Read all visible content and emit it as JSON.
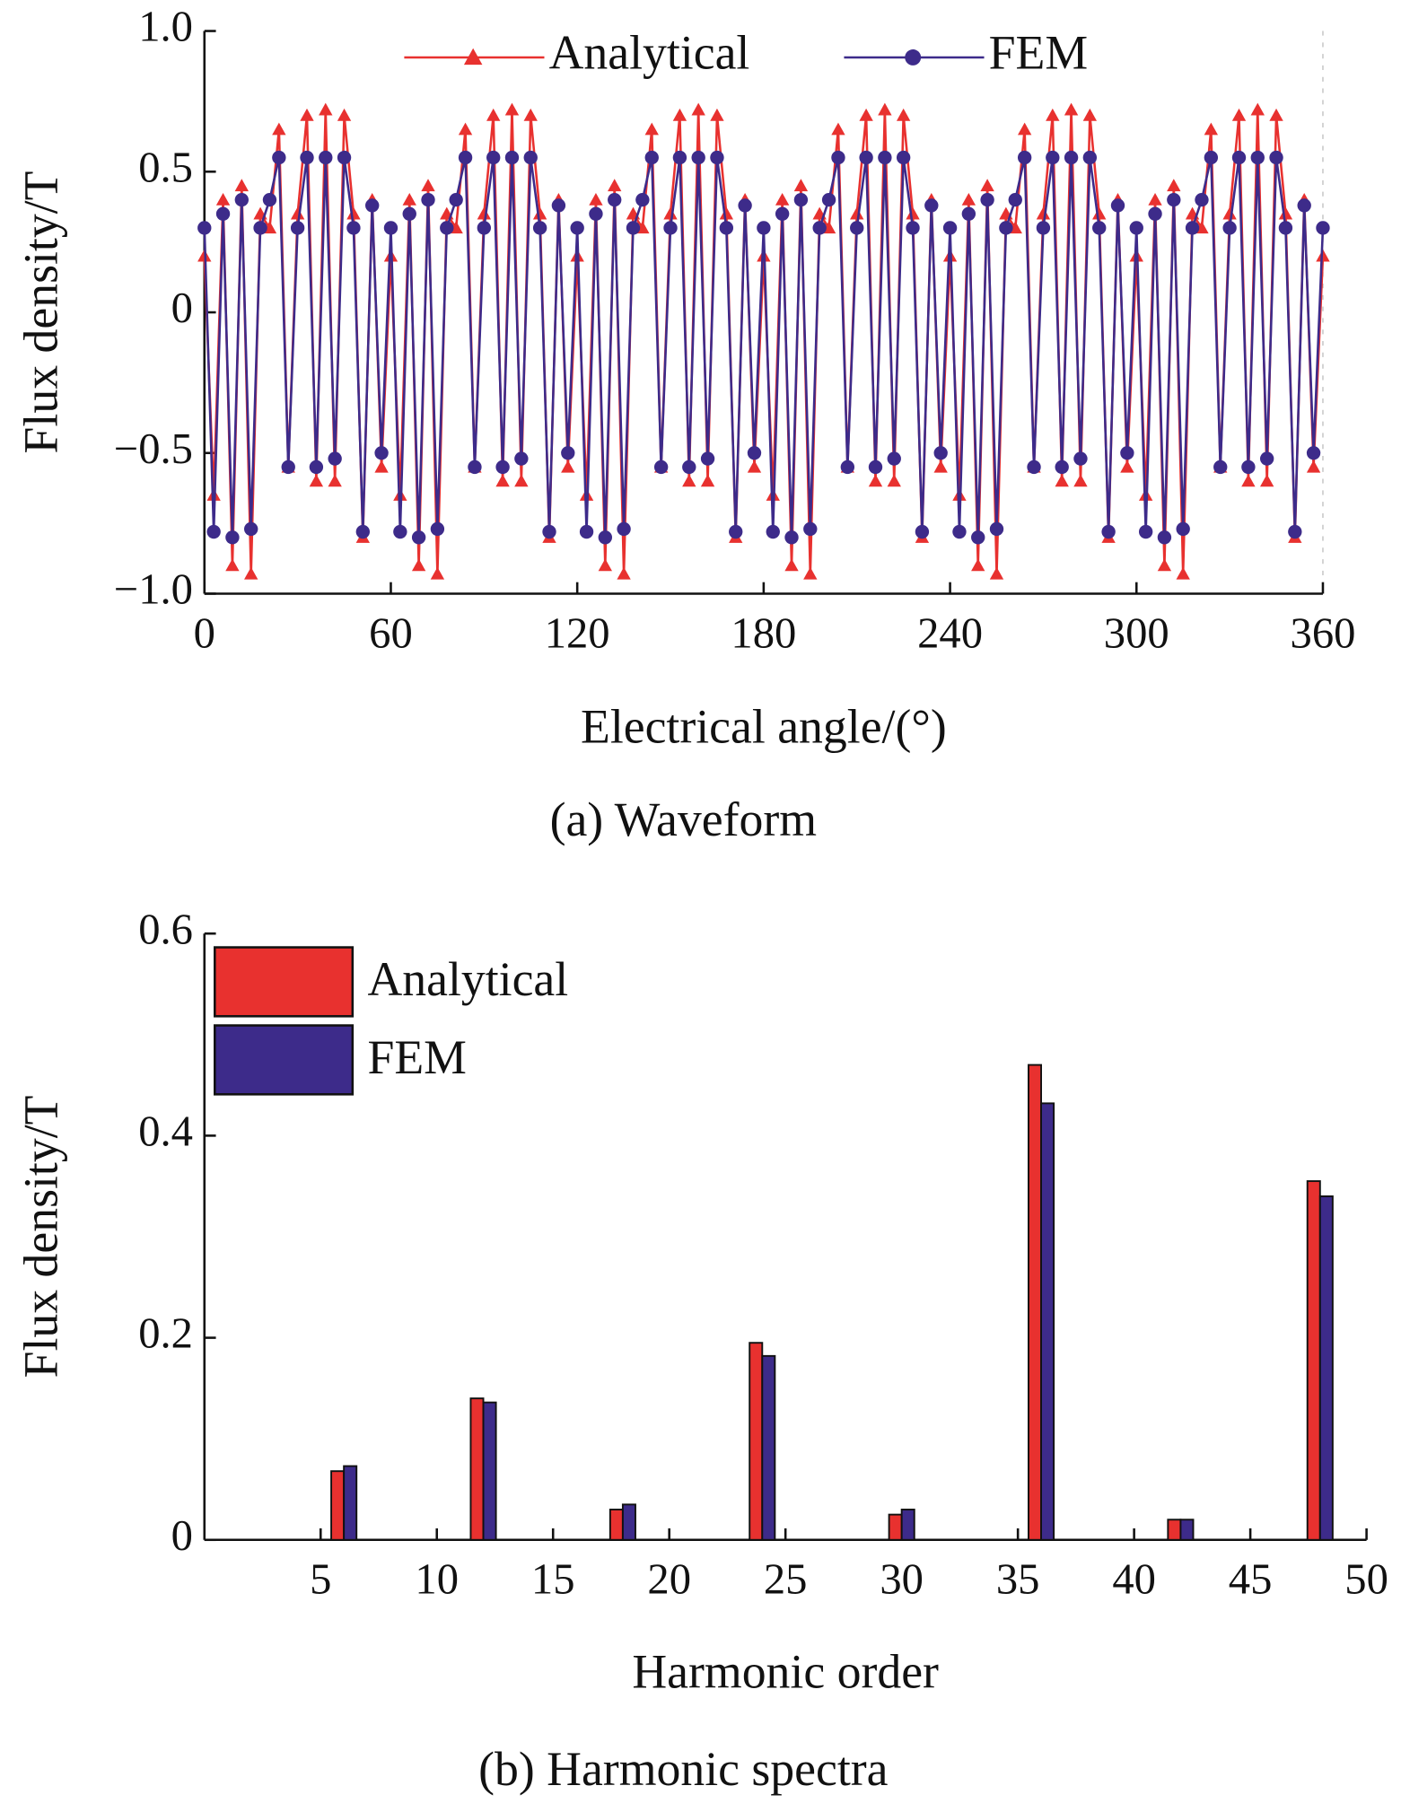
{
  "chart_data": [
    {
      "type": "line",
      "xlabel": "Electrical angle/(°)",
      "ylabel": "Flux density/T",
      "caption": "(a) Waveform",
      "xlim": [
        0,
        360
      ],
      "xticks": [
        0,
        60,
        120,
        180,
        240,
        300,
        360
      ],
      "ylim": [
        -1,
        1
      ],
      "yticks": [
        {
          "value": 1,
          "label": "1.0"
        },
        0.5,
        0,
        {
          "value": -0.5,
          "label": "−0.5"
        },
        {
          "value": -1,
          "label": "−1.0"
        }
      ],
      "x": [
        0,
        3,
        6,
        9,
        12,
        15,
        18,
        21,
        24,
        27,
        30,
        33,
        36,
        39,
        42,
        45,
        48,
        51,
        54,
        57,
        60,
        63,
        66,
        69,
        72,
        75,
        78,
        81,
        84,
        87,
        90,
        93,
        96,
        99,
        102,
        105,
        108,
        111,
        114,
        117,
        120,
        123,
        126,
        129,
        132,
        135,
        138,
        141,
        144,
        147,
        150,
        153,
        156,
        159,
        162,
        165,
        168,
        171,
        174,
        177,
        180,
        183,
        186,
        189,
        192,
        195,
        198,
        201,
        204,
        207,
        210,
        213,
        216,
        219,
        222,
        225,
        228,
        231,
        234,
        237,
        240,
        243,
        246,
        249,
        252,
        255,
        258,
        261,
        264,
        267,
        270,
        273,
        276,
        279,
        282,
        285,
        288,
        291,
        294,
        297,
        300,
        303,
        306,
        309,
        312,
        315,
        318,
        321,
        324,
        327,
        330,
        333,
        336,
        339,
        342,
        345,
        348,
        351,
        354,
        357,
        360
      ],
      "series": [
        {
          "name": "Analytical",
          "color": "#e8312f",
          "marker": "triangle",
          "values": [
            0.2,
            -0.65,
            0.4,
            -0.9,
            0.45,
            -0.93,
            0.35,
            0.3,
            0.65,
            -0.55,
            0.35,
            0.7,
            -0.6,
            0.72,
            -0.6,
            0.7,
            0.35,
            -0.8,
            0.4,
            -0.55,
            0.2,
            -0.65,
            0.4,
            -0.9,
            0.45,
            -0.93,
            0.35,
            0.3,
            0.65,
            -0.55,
            0.35,
            0.7,
            -0.6,
            0.72,
            -0.6,
            0.7,
            0.35,
            -0.8,
            0.4,
            -0.55,
            0.2,
            -0.65,
            0.4,
            -0.9,
            0.45,
            -0.93,
            0.35,
            0.3,
            0.65,
            -0.55,
            0.35,
            0.7,
            -0.6,
            0.72,
            -0.6,
            0.7,
            0.35,
            -0.8,
            0.4,
            -0.55,
            0.2,
            -0.65,
            0.4,
            -0.9,
            0.45,
            -0.93,
            0.35,
            0.3,
            0.65,
            -0.55,
            0.35,
            0.7,
            -0.6,
            0.72,
            -0.6,
            0.7,
            0.35,
            -0.8,
            0.4,
            -0.55,
            0.2,
            -0.65,
            0.4,
            -0.9,
            0.45,
            -0.93,
            0.35,
            0.3,
            0.65,
            -0.55,
            0.35,
            0.7,
            -0.6,
            0.72,
            -0.6,
            0.7,
            0.35,
            -0.8,
            0.4,
            -0.55,
            0.2,
            -0.65,
            0.4,
            -0.9,
            0.45,
            -0.93,
            0.35,
            0.3,
            0.65,
            -0.55,
            0.35,
            0.7,
            -0.6,
            0.72,
            -0.6,
            0.7,
            0.35,
            -0.8,
            0.4,
            -0.55,
            0.2
          ]
        },
        {
          "name": "FEM",
          "color": "#3d2b8a",
          "marker": "circle",
          "values": [
            0.3,
            -0.78,
            0.35,
            -0.8,
            0.4,
            -0.77,
            0.3,
            0.4,
            0.55,
            -0.55,
            0.3,
            0.55,
            -0.55,
            0.55,
            -0.52,
            0.55,
            0.3,
            -0.78,
            0.38,
            -0.5,
            0.3,
            -0.78,
            0.35,
            -0.8,
            0.4,
            -0.77,
            0.3,
            0.4,
            0.55,
            -0.55,
            0.3,
            0.55,
            -0.55,
            0.55,
            -0.52,
            0.55,
            0.3,
            -0.78,
            0.38,
            -0.5,
            0.3,
            -0.78,
            0.35,
            -0.8,
            0.4,
            -0.77,
            0.3,
            0.4,
            0.55,
            -0.55,
            0.3,
            0.55,
            -0.55,
            0.55,
            -0.52,
            0.55,
            0.3,
            -0.78,
            0.38,
            -0.5,
            0.3,
            -0.78,
            0.35,
            -0.8,
            0.4,
            -0.77,
            0.3,
            0.4,
            0.55,
            -0.55,
            0.3,
            0.55,
            -0.55,
            0.55,
            -0.52,
            0.55,
            0.3,
            -0.78,
            0.38,
            -0.5,
            0.3,
            -0.78,
            0.35,
            -0.8,
            0.4,
            -0.77,
            0.3,
            0.4,
            0.55,
            -0.55,
            0.3,
            0.55,
            -0.55,
            0.55,
            -0.52,
            0.55,
            0.3,
            -0.78,
            0.38,
            -0.5,
            0.3,
            -0.78,
            0.35,
            -0.8,
            0.4,
            -0.77,
            0.3,
            0.4,
            0.55,
            -0.55,
            0.3,
            0.55,
            -0.55,
            0.55,
            -0.52,
            0.55,
            0.3,
            -0.78,
            0.38,
            -0.5,
            0.3
          ]
        }
      ]
    },
    {
      "type": "bar",
      "xlabel": "Harmonic order",
      "ylabel": "Flux density/T",
      "caption": "(b) Harmonic spectra",
      "xlim": [
        0,
        50
      ],
      "xticks": [
        5,
        10,
        15,
        20,
        25,
        30,
        35,
        40,
        45,
        50
      ],
      "ylim": [
        0,
        0.6
      ],
      "yticks": [
        0,
        0.2,
        0.4,
        0.6
      ],
      "x": [
        6,
        12,
        18,
        24,
        30,
        36,
        42,
        48
      ],
      "series": [
        {
          "name": "Analytical",
          "color": "#e8312f",
          "values": [
            0.068,
            0.14,
            0.03,
            0.195,
            0.025,
            0.47,
            0.02,
            0.355
          ]
        },
        {
          "name": "FEM",
          "color": "#3d2b8a",
          "values": [
            0.073,
            0.136,
            0.035,
            0.182,
            0.03,
            0.432,
            0.02,
            0.34
          ]
        }
      ]
    }
  ]
}
